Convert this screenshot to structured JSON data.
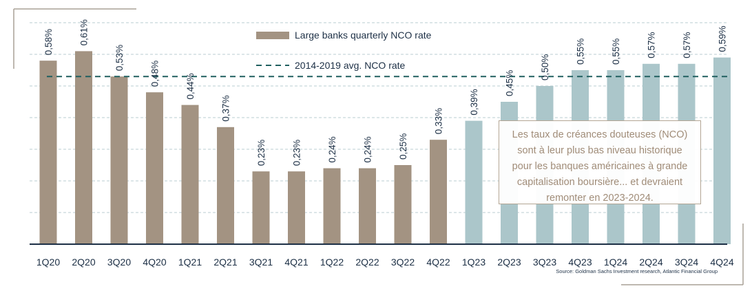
{
  "chart_data": {
    "type": "bar",
    "categories": [
      "1Q20",
      "2Q20",
      "3Q20",
      "4Q20",
      "1Q21",
      "2Q21",
      "3Q21",
      "4Q21",
      "1Q22",
      "2Q22",
      "3Q22",
      "4Q22",
      "1Q23",
      "2Q23",
      "3Q23",
      "4Q23",
      "1Q24",
      "2Q24",
      "3Q24",
      "4Q24"
    ],
    "values": [
      0.58,
      0.61,
      0.53,
      0.48,
      0.44,
      0.37,
      0.23,
      0.23,
      0.24,
      0.24,
      0.25,
      0.33,
      0.39,
      0.45,
      0.5,
      0.55,
      0.55,
      0.57,
      0.57,
      0.59
    ],
    "value_labels": [
      "0,58%",
      "0,61%",
      "0,53%",
      "0,48%",
      "0,44%",
      "0,37%",
      "0,23%",
      "0,23%",
      "0,24%",
      "0,24%",
      "0,25%",
      "0,33%",
      "0,39%",
      "0,45%",
      "0,50%",
      "0,55%",
      "0,55%",
      "0,57%",
      "0,57%",
      "0,59%"
    ],
    "actual_count": 12,
    "colors": {
      "actual": "#a39382",
      "forecast": "#abc6ca",
      "average": "#1f5f5f",
      "axis": "#1c2f45",
      "grid": "#b9cdd0"
    },
    "average": {
      "name": "2014-2019 avg. NCO rate",
      "value": 0.53
    },
    "series_name": "Large banks quarterly NCO rate",
    "ylim": [
      0,
      0.7
    ],
    "grid": true,
    "legend": "top-center",
    "annotation": [
      "Les taux de créances douteuses (NCO)",
      "sont à leur plus bas niveau historique",
      "pour les banques américaines à grande",
      "capitalisation boursière... et devraient",
      "remonter en 2023-2024."
    ],
    "source": "Source: Goldman Sachs Investment research, Atlantic Financial Group"
  }
}
